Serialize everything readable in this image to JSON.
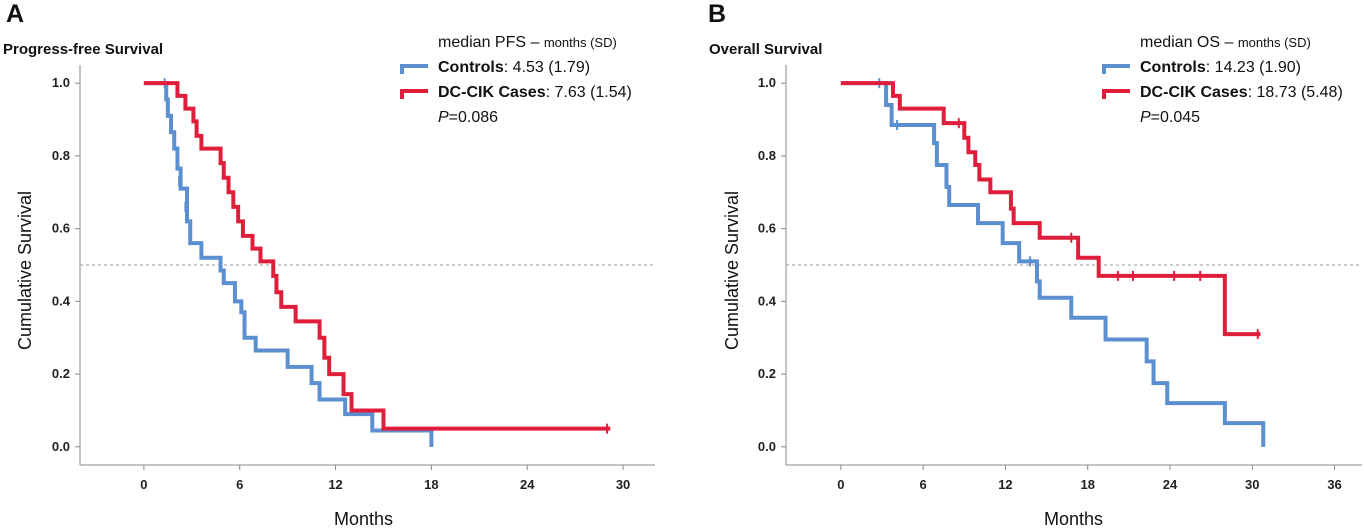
{
  "chart_data": [
    {
      "type": "line",
      "panel": "A",
      "title": "Progress-free Survival",
      "xlabel": "Months",
      "ylabel": "Cumulative Survival",
      "xlim": [
        -4,
        32
      ],
      "ylim": [
        -0.05,
        1.05
      ],
      "xticks": [
        0,
        6,
        12,
        18,
        24,
        30
      ],
      "yticks": [
        0.0,
        0.2,
        0.4,
        0.6,
        0.8,
        1.0
      ],
      "reference_line": 0.5,
      "legend": {
        "heading": "median PFS –",
        "heading_small": "months (SD)",
        "entries": [
          {
            "name": "Controls",
            "value": ": 4.53 (1.79)"
          },
          {
            "name": "DC-CIK Cases",
            "value": ": 7.63 (1.54)"
          }
        ],
        "p_label": "P",
        "p_value": "=0.086"
      },
      "series": [
        {
          "name": "Controls",
          "color": "#5b8fd0",
          "steps": [
            [
              0,
              1.0
            ],
            [
              1.4,
              0.955
            ],
            [
              1.5,
              0.91
            ],
            [
              1.7,
              0.865
            ],
            [
              1.9,
              0.82
            ],
            [
              2.1,
              0.765
            ],
            [
              2.3,
              0.71
            ],
            [
              2.7,
              0.62
            ],
            [
              2.9,
              0.56
            ],
            [
              3.6,
              0.52
            ],
            [
              4.8,
              0.485
            ],
            [
              5.0,
              0.45
            ],
            [
              5.7,
              0.4
            ],
            [
              6.1,
              0.37
            ],
            [
              6.3,
              0.3
            ],
            [
              7.0,
              0.265
            ],
            [
              9.0,
              0.22
            ],
            [
              10.5,
              0.175
            ],
            [
              11.0,
              0.13
            ],
            [
              12.6,
              0.09
            ],
            [
              14.3,
              0.045
            ],
            [
              18.0,
              0.0
            ]
          ],
          "censored": [
            [
              1.3,
              1.0
            ],
            [
              2.2,
              0.73
            ],
            [
              2.6,
              0.66
            ]
          ],
          "end": 18.0
        },
        {
          "name": "DC-CIK Cases",
          "color": "#e01e3c",
          "steps": [
            [
              0,
              1.0
            ],
            [
              1.0,
              1.0
            ],
            [
              2.1,
              0.965
            ],
            [
              2.6,
              0.93
            ],
            [
              3.1,
              0.895
            ],
            [
              3.3,
              0.855
            ],
            [
              3.6,
              0.82
            ],
            [
              4.8,
              0.78
            ],
            [
              5.0,
              0.74
            ],
            [
              5.3,
              0.7
            ],
            [
              5.6,
              0.66
            ],
            [
              5.9,
              0.62
            ],
            [
              6.2,
              0.58
            ],
            [
              6.8,
              0.545
            ],
            [
              7.3,
              0.51
            ],
            [
              8.1,
              0.47
            ],
            [
              8.3,
              0.425
            ],
            [
              8.6,
              0.385
            ],
            [
              9.5,
              0.345
            ],
            [
              11.0,
              0.3
            ],
            [
              11.3,
              0.245
            ],
            [
              11.6,
              0.2
            ],
            [
              12.5,
              0.145
            ],
            [
              13.0,
              0.1
            ],
            [
              15.0,
              0.05
            ]
          ],
          "censored": [
            [
              29.0,
              0.05
            ]
          ],
          "end": 29.2
        }
      ]
    },
    {
      "type": "line",
      "panel": "B",
      "title": "Overall Survival",
      "xlabel": "Months",
      "ylabel": "Cumulative Survival",
      "xlim": [
        -4,
        38
      ],
      "ylim": [
        -0.05,
        1.05
      ],
      "xticks": [
        0,
        6,
        12,
        18,
        24,
        30,
        36
      ],
      "yticks": [
        0.0,
        0.2,
        0.4,
        0.6,
        0.8,
        1.0
      ],
      "reference_line": 0.5,
      "legend": {
        "heading": "median OS –",
        "heading_small": "months (SD)",
        "entries": [
          {
            "name": "Controls",
            "value": ": 14.23 (1.90)"
          },
          {
            "name": "DC-CIK Cases",
            "value": ": 18.73 (5.48)"
          }
        ],
        "p_label": "P",
        "p_value": "=0.045"
      },
      "series": [
        {
          "name": "Controls",
          "color": "#5b8fd0",
          "steps": [
            [
              0,
              1.0
            ],
            [
              3.3,
              0.94
            ],
            [
              3.7,
              0.885
            ],
            [
              6.8,
              0.835
            ],
            [
              7.0,
              0.775
            ],
            [
              7.7,
              0.715
            ],
            [
              7.9,
              0.665
            ],
            [
              10.0,
              0.615
            ],
            [
              11.8,
              0.56
            ],
            [
              13.0,
              0.51
            ],
            [
              14.3,
              0.455
            ],
            [
              14.5,
              0.41
            ],
            [
              16.8,
              0.355
            ],
            [
              19.3,
              0.295
            ],
            [
              22.3,
              0.235
            ],
            [
              22.8,
              0.175
            ],
            [
              23.8,
              0.12
            ],
            [
              28.0,
              0.065
            ],
            [
              30.8,
              0.0
            ]
          ],
          "censored": [
            [
              2.8,
              1.0
            ],
            [
              4.1,
              0.885
            ],
            [
              7.9,
              0.685
            ],
            [
              13.8,
              0.51
            ]
          ],
          "end": 30.8
        },
        {
          "name": "DC-CIK Cases",
          "color": "#e01e3c",
          "steps": [
            [
              0,
              1.0
            ],
            [
              3.8,
              0.965
            ],
            [
              4.3,
              0.93
            ],
            [
              7.5,
              0.89
            ],
            [
              9.0,
              0.85
            ],
            [
              9.3,
              0.81
            ],
            [
              9.8,
              0.775
            ],
            [
              10.1,
              0.735
            ],
            [
              10.9,
              0.7
            ],
            [
              12.4,
              0.655
            ],
            [
              12.6,
              0.615
            ],
            [
              14.5,
              0.575
            ],
            [
              17.3,
              0.52
            ],
            [
              18.8,
              0.47
            ],
            [
              28.0,
              0.31
            ]
          ],
          "censored": [
            [
              8.6,
              0.89
            ],
            [
              16.8,
              0.575
            ],
            [
              20.2,
              0.47
            ],
            [
              21.3,
              0.47
            ],
            [
              24.3,
              0.47
            ],
            [
              26.2,
              0.47
            ],
            [
              30.4,
              0.31
            ]
          ],
          "end": 30.6
        }
      ]
    }
  ]
}
